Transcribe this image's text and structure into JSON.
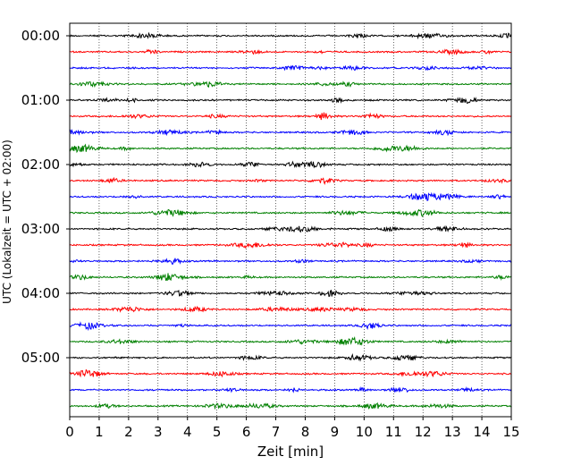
{
  "chart_data": {
    "type": "line",
    "title": "",
    "xlabel": "Zeit  [min]",
    "ylabel": "UTC (Lokalzeit = UTC + 02:00)",
    "xlim": [
      0,
      15
    ],
    "x_ticks": [
      "0",
      "1",
      "2",
      "3",
      "4",
      "5",
      "6",
      "7",
      "8",
      "9",
      "10",
      "11",
      "12",
      "13",
      "14",
      "15"
    ],
    "y_tick_labels": [
      "00:00",
      "01:00",
      "02:00",
      "03:00",
      "04:00",
      "05:00"
    ],
    "grid": "vertical dotted lines at each minute",
    "trace_colors": [
      "#000000",
      "#ff0000",
      "#0000ff",
      "#008000"
    ],
    "traces": [
      {
        "start": "00:00",
        "color": "#000000"
      },
      {
        "start": "00:15",
        "color": "#ff0000"
      },
      {
        "start": "00:30",
        "color": "#0000ff"
      },
      {
        "start": "00:45",
        "color": "#008000"
      },
      {
        "start": "01:00",
        "color": "#000000"
      },
      {
        "start": "01:15",
        "color": "#ff0000"
      },
      {
        "start": "01:30",
        "color": "#0000ff"
      },
      {
        "start": "01:45",
        "color": "#008000"
      },
      {
        "start": "02:00",
        "color": "#000000"
      },
      {
        "start": "02:15",
        "color": "#ff0000"
      },
      {
        "start": "02:30",
        "color": "#0000ff"
      },
      {
        "start": "02:45",
        "color": "#008000"
      },
      {
        "start": "03:00",
        "color": "#000000"
      },
      {
        "start": "03:15",
        "color": "#ff0000"
      },
      {
        "start": "03:30",
        "color": "#0000ff"
      },
      {
        "start": "03:45",
        "color": "#008000"
      },
      {
        "start": "04:00",
        "color": "#000000"
      },
      {
        "start": "04:15",
        "color": "#ff0000"
      },
      {
        "start": "04:30",
        "color": "#0000ff"
      },
      {
        "start": "04:45",
        "color": "#008000"
      },
      {
        "start": "05:00",
        "color": "#000000"
      },
      {
        "start": "05:15",
        "color": "#ff0000"
      },
      {
        "start": "05:30",
        "color": "#0000ff"
      },
      {
        "start": "05:45",
        "color": "#008000"
      }
    ]
  }
}
